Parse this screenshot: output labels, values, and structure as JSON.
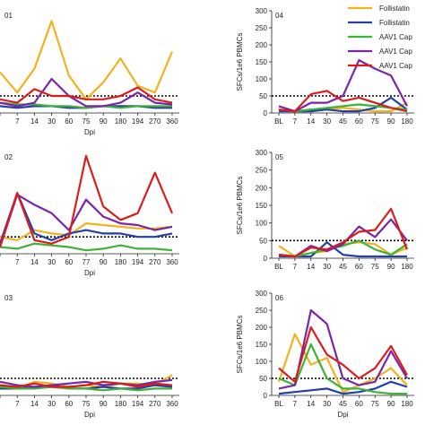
{
  "legend": [
    {
      "label": "Follistatin",
      "color": "#f2b21c"
    },
    {
      "label": "Follistatin",
      "color": "#2340a8"
    },
    {
      "label": "AAV1 Cap",
      "color": "#3db33a"
    },
    {
      "label": "AAV1 Cap",
      "color": "#7a25a8"
    },
    {
      "label": "AAV1 Cap",
      "color": "#dc1c1c"
    }
  ],
  "chart_data": [
    {
      "type": "line",
      "title": "01",
      "xlabel": "Dpi",
      "ylabel": "",
      "categories": [
        "",
        "7",
        "14",
        "30",
        "60",
        "75",
        "90",
        "180",
        "194",
        "270",
        "360"
      ],
      "ylim": [
        0,
        300
      ],
      "threshold": 50,
      "yticks": [],
      "series": [
        {
          "color": "#f2b21c",
          "values": [
            120,
            60,
            130,
            270,
            110,
            40,
            90,
            160,
            80,
            60,
            180
          ]
        },
        {
          "color": "#2340a8",
          "values": [
            20,
            15,
            20,
            20,
            15,
            15,
            20,
            20,
            20,
            15,
            15
          ]
        },
        {
          "color": "#3db33a",
          "values": [
            30,
            25,
            25,
            20,
            20,
            15,
            20,
            15,
            20,
            20,
            20
          ]
        },
        {
          "color": "#7a25a8",
          "values": [
            30,
            20,
            30,
            100,
            50,
            20,
            20,
            30,
            60,
            30,
            25
          ]
        },
        {
          "color": "#dc1c1c",
          "values": [
            40,
            30,
            70,
            50,
            50,
            40,
            40,
            50,
            75,
            40,
            30
          ]
        }
      ]
    },
    {
      "type": "line",
      "title": "04",
      "xlabel": "",
      "ylabel": "SFCs/1e6 PBMCs",
      "categories": [
        "BL",
        "7",
        "14",
        "30",
        "45",
        "60",
        "75",
        "90",
        "180"
      ],
      "ylim": [
        0,
        300
      ],
      "threshold": 50,
      "yticks": [
        0,
        50,
        100,
        150,
        200,
        250,
        300
      ],
      "series": [
        {
          "color": "#f2b21c",
          "values": [
            10,
            5,
            10,
            10,
            15,
            10,
            5,
            5,
            30
          ]
        },
        {
          "color": "#2340a8",
          "values": [
            5,
            5,
            5,
            10,
            5,
            5,
            15,
            45,
            10
          ]
        },
        {
          "color": "#3db33a",
          "values": [
            10,
            5,
            10,
            15,
            20,
            25,
            20,
            15,
            10
          ]
        },
        {
          "color": "#7a25a8",
          "values": [
            20,
            5,
            30,
            30,
            50,
            155,
            130,
            110,
            20
          ]
        },
        {
          "color": "#dc1c1c",
          "values": [
            10,
            5,
            55,
            65,
            35,
            45,
            30,
            15,
            5
          ]
        }
      ]
    },
    {
      "type": "line",
      "title": "02",
      "xlabel": "Dpi",
      "ylabel": "",
      "categories": [
        "",
        "7",
        "14",
        "30",
        "60",
        "77",
        "90",
        "180",
        "194",
        "270",
        "360"
      ],
      "ylim": [
        0,
        300
      ],
      "threshold": 50,
      "yticks": [],
      "series": [
        {
          "color": "#f2b21c",
          "values": [
            50,
            40,
            70,
            60,
            55,
            90,
            85,
            80,
            75,
            75,
            80
          ]
        },
        {
          "color": "#2340a8",
          "values": [
            30,
            180,
            60,
            40,
            60,
            70,
            60,
            60,
            50,
            50,
            60
          ]
        },
        {
          "color": "#3db33a",
          "values": [
            20,
            15,
            30,
            25,
            20,
            10,
            15,
            25,
            15,
            15,
            10
          ]
        },
        {
          "color": "#7a25a8",
          "values": [
            20,
            175,
            145,
            120,
            70,
            160,
            110,
            90,
            85,
            70,
            80
          ]
        },
        {
          "color": "#dc1c1c",
          "values": [
            20,
            180,
            40,
            30,
            50,
            290,
            140,
            100,
            120,
            240,
            120
          ]
        }
      ]
    },
    {
      "type": "line",
      "title": "05",
      "xlabel": "",
      "ylabel": "SFCs/1e6 PBMCs",
      "categories": [
        "BL",
        "7",
        "14",
        "30",
        "45",
        "60",
        "75",
        "90",
        "180"
      ],
      "ylim": [
        0,
        300
      ],
      "threshold": 50,
      "yticks": [
        0,
        50,
        100,
        150,
        200,
        250,
        300
      ],
      "series": [
        {
          "color": "#f2b21c",
          "values": [
            35,
            5,
            15,
            20,
            40,
            45,
            40,
            10,
            30
          ]
        },
        {
          "color": "#2340a8",
          "values": [
            5,
            5,
            5,
            45,
            10,
            5,
            5,
            5,
            5
          ]
        },
        {
          "color": "#3db33a",
          "values": [
            10,
            5,
            15,
            25,
            35,
            50,
            25,
            10,
            40
          ]
        },
        {
          "color": "#7a25a8",
          "values": [
            10,
            5,
            35,
            20,
            40,
            90,
            60,
            110,
            50
          ]
        },
        {
          "color": "#dc1c1c",
          "values": [
            10,
            5,
            30,
            25,
            45,
            75,
            80,
            140,
            25
          ]
        }
      ]
    },
    {
      "type": "line",
      "title": "03",
      "xlabel": "Dpi",
      "ylabel": "",
      "categories": [
        "",
        "7",
        "14",
        "30",
        "60",
        "75",
        "90",
        "180",
        "194",
        "270",
        "360"
      ],
      "ylim": [
        0,
        300
      ],
      "threshold": 50,
      "yticks": [],
      "series": [
        {
          "color": "#f2b21c",
          "values": [
            30,
            20,
            40,
            35,
            25,
            30,
            25,
            35,
            35,
            30,
            60
          ]
        },
        {
          "color": "#2340a8",
          "values": [
            20,
            20,
            25,
            30,
            20,
            20,
            25,
            20,
            20,
            30,
            25
          ]
        },
        {
          "color": "#3db33a",
          "values": [
            25,
            20,
            20,
            25,
            20,
            20,
            15,
            20,
            15,
            20,
            20
          ]
        },
        {
          "color": "#7a25a8",
          "values": [
            40,
            30,
            25,
            30,
            35,
            40,
            30,
            35,
            30,
            40,
            45
          ]
        },
        {
          "color": "#dc1c1c",
          "values": [
            30,
            25,
            35,
            25,
            25,
            30,
            40,
            35,
            25,
            35,
            30
          ]
        }
      ]
    },
    {
      "type": "line",
      "title": "06",
      "xlabel": "Dpi",
      "ylabel": "SFCs/1e6 PBMCs",
      "categories": [
        "BL",
        "7",
        "14",
        "30",
        "45",
        "60",
        "75",
        "90",
        "180"
      ],
      "ylim": [
        0,
        300
      ],
      "threshold": 50,
      "yticks": [
        0,
        50,
        100,
        150,
        200,
        250,
        300
      ],
      "series": [
        {
          "color": "#f2b21c",
          "values": [
            40,
            180,
            90,
            110,
            10,
            30,
            50,
            80,
            30
          ]
        },
        {
          "color": "#2340a8",
          "values": [
            5,
            10,
            15,
            20,
            5,
            10,
            20,
            40,
            25
          ]
        },
        {
          "color": "#3db33a",
          "values": [
            50,
            30,
            150,
            50,
            20,
            20,
            10,
            5,
            5
          ]
        },
        {
          "color": "#7a25a8",
          "values": [
            20,
            30,
            250,
            210,
            50,
            30,
            40,
            130,
            50
          ]
        },
        {
          "color": "#dc1c1c",
          "values": [
            80,
            40,
            200,
            120,
            90,
            50,
            80,
            145,
            60
          ]
        }
      ]
    }
  ]
}
